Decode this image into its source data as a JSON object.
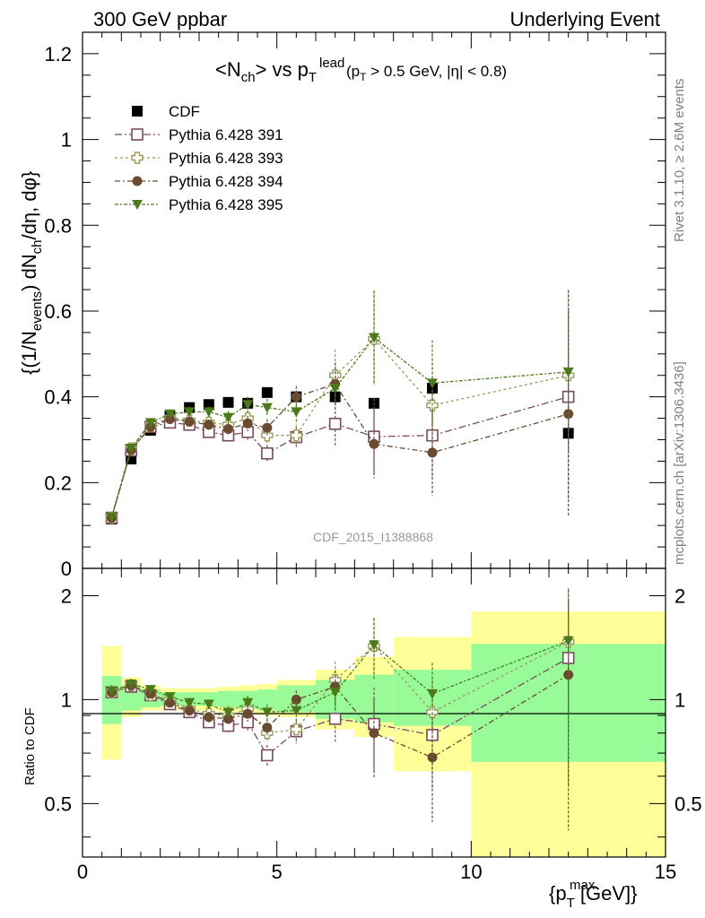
{
  "header": {
    "left": "300 GeV ppbar",
    "right": "Underlying Event"
  },
  "side_labels": {
    "rivet": "Rivet 3.1.10, ≥ 2.6M events",
    "mcplots": "mcplots.cern.ch [arXiv:1306.3436]"
  },
  "plot_title": {
    "main": "<N",
    "ch_sub": "ch",
    "vs": "> vs p",
    "t_sub": "T",
    "lead_sup": "lead",
    "cut": "(p",
    "cut_sub": "T",
    "cut_rest": " > 0.5 GeV, |η| < 0.8)"
  },
  "watermark": "CDF_2015_I1388868",
  "axes": {
    "ylabel_main": "{(1/N",
    "ylabel_sub1": "events",
    "ylabel_mid": ") dN",
    "ylabel_sub2": "ch",
    "ylabel_end": "/dη, dφ}",
    "ylabel_ratio": "Ratio to CDF",
    "xlabel": "{p",
    "xlabel_sub": "T",
    "xlabel_sup": "max",
    "xlabel_end": " [GeV]}"
  },
  "colors": {
    "cdf": "#000000",
    "p391": "#7a4a60",
    "p393": "#9a9a5a",
    "p394": "#6b4a32",
    "p395": "#4a7a1a",
    "band_inner": "#98fb98",
    "band_outer": "#ffff99"
  },
  "chart_data": {
    "type": "scatter",
    "xlim": [
      0,
      15
    ],
    "ylim": [
      0,
      1.25
    ],
    "ratio_ylim": [
      0.35,
      2.4
    ],
    "ratio_scale": "log",
    "x_ticks": [
      "0",
      "5",
      "10",
      "15"
    ],
    "y_ticks": [
      "0",
      "0.2",
      "0.4",
      "0.6",
      "0.8",
      "1",
      "1.2"
    ],
    "ratio_ticks": [
      "0.5",
      "1",
      "2"
    ],
    "bins": [
      [
        0.5,
        1.0
      ],
      [
        1.0,
        1.5
      ],
      [
        1.5,
        2.0
      ],
      [
        2.0,
        2.5
      ],
      [
        2.5,
        3.0
      ],
      [
        3.0,
        3.5
      ],
      [
        3.5,
        4.0
      ],
      [
        4.0,
        4.5
      ],
      [
        4.5,
        5.0
      ],
      [
        5.0,
        6.0
      ],
      [
        6.0,
        7.0
      ],
      [
        7.0,
        8.0
      ],
      [
        8.0,
        10.0
      ],
      [
        10.0,
        15.0
      ]
    ],
    "x": [
      0.75,
      1.25,
      1.75,
      2.25,
      2.75,
      3.25,
      3.75,
      4.25,
      4.75,
      5.5,
      6.5,
      7.5,
      9.0,
      12.5
    ],
    "series": [
      {
        "name": "CDF",
        "marker": "square-filled",
        "values": [
          0.115,
          0.255,
          0.322,
          0.355,
          0.375,
          0.382,
          0.387,
          0.385,
          0.41,
          0.4,
          0.4,
          0.385,
          0.42,
          0.315
        ],
        "errors": [
          0.005,
          0.008,
          0.008,
          0.008,
          0.008,
          0.008,
          0.008,
          0.008,
          0.01,
          0.01,
          0.012,
          0.012,
          0.015,
          0.015
        ],
        "ratio": [
          1,
          1,
          1,
          1,
          1,
          1,
          1,
          1,
          1,
          1,
          1,
          1,
          1,
          1
        ]
      },
      {
        "name": "Pythia 6.428 391",
        "marker": "square-open",
        "values": [
          0.118,
          0.275,
          0.33,
          0.34,
          0.335,
          0.318,
          0.31,
          0.318,
          0.268,
          0.306,
          0.337,
          0.307,
          0.31,
          0.4
        ],
        "errors": [
          0.005,
          0.01,
          0.01,
          0.01,
          0.012,
          0.012,
          0.015,
          0.018,
          0.02,
          0.025,
          0.05,
          0.09,
          0.1,
          0.24
        ],
        "ratio": [
          1.05,
          1.09,
          1.03,
          0.97,
          0.92,
          0.86,
          0.84,
          0.86,
          0.69,
          0.81,
          0.88,
          0.85,
          0.79,
          1.32
        ]
      },
      {
        "name": "Pythia 6.428 393",
        "marker": "cross-open",
        "values": [
          0.118,
          0.28,
          0.332,
          0.352,
          0.345,
          0.34,
          0.335,
          0.35,
          0.31,
          0.31,
          0.45,
          0.535,
          0.38,
          0.45
        ],
        "errors": [
          0.005,
          0.01,
          0.01,
          0.01,
          0.012,
          0.012,
          0.015,
          0.018,
          0.02,
          0.025,
          0.06,
          0.11,
          0.1,
          0.2
        ],
        "ratio": [
          1.05,
          1.1,
          1.03,
          1.0,
          0.94,
          0.91,
          0.9,
          0.94,
          0.8,
          0.82,
          1.14,
          1.43,
          0.92,
          1.47
        ]
      },
      {
        "name": "Pythia 6.428 394",
        "marker": "circle-filled",
        "values": [
          0.118,
          0.276,
          0.33,
          0.348,
          0.342,
          0.335,
          0.325,
          0.338,
          0.328,
          0.4,
          0.43,
          0.29,
          0.27,
          0.36
        ],
        "errors": [
          0.005,
          0.01,
          0.01,
          0.01,
          0.012,
          0.012,
          0.015,
          0.018,
          0.02,
          0.025,
          0.05,
          0.08,
          0.1,
          0.24
        ],
        "ratio": [
          1.05,
          1.1,
          1.04,
          0.98,
          0.93,
          0.89,
          0.88,
          0.91,
          0.83,
          1.0,
          1.09,
          0.8,
          0.68,
          1.18
        ]
      },
      {
        "name": "Pythia 6.428 395",
        "marker": "triangle-down-filled",
        "values": [
          0.12,
          0.28,
          0.34,
          0.36,
          0.365,
          0.365,
          0.352,
          0.382,
          0.375,
          0.365,
          0.42,
          0.538,
          0.432,
          0.458
        ],
        "errors": [
          0.005,
          0.01,
          0.01,
          0.01,
          0.012,
          0.012,
          0.015,
          0.018,
          0.02,
          0.025,
          0.05,
          0.11,
          0.1,
          0.19
        ],
        "ratio": [
          1.06,
          1.11,
          1.07,
          1.02,
          0.98,
          0.97,
          0.92,
          0.98,
          0.92,
          0.93,
          1.05,
          1.44,
          1.04,
          1.48
        ]
      }
    ],
    "band_inner": [
      [
        0.85,
        1.17
      ],
      [
        0.93,
        1.1
      ],
      [
        0.95,
        1.07
      ],
      [
        0.96,
        1.05
      ],
      [
        0.96,
        1.05
      ],
      [
        0.96,
        1.05
      ],
      [
        0.95,
        1.06
      ],
      [
        0.94,
        1.06
      ],
      [
        0.93,
        1.07
      ],
      [
        0.92,
        1.1
      ],
      [
        0.88,
        1.14
      ],
      [
        0.86,
        1.18
      ],
      [
        0.84,
        1.22
      ],
      [
        0.66,
        1.45
      ]
    ],
    "band_outer": [
      [
        0.67,
        1.43
      ],
      [
        0.89,
        1.16
      ],
      [
        0.93,
        1.1
      ],
      [
        0.93,
        1.08
      ],
      [
        0.93,
        1.08
      ],
      [
        0.93,
        1.08
      ],
      [
        0.92,
        1.09
      ],
      [
        0.91,
        1.1
      ],
      [
        0.9,
        1.11
      ],
      [
        0.89,
        1.14
      ],
      [
        0.82,
        1.22
      ],
      [
        0.78,
        1.33
      ],
      [
        0.62,
        1.52
      ],
      [
        0.35,
        1.8
      ]
    ]
  }
}
